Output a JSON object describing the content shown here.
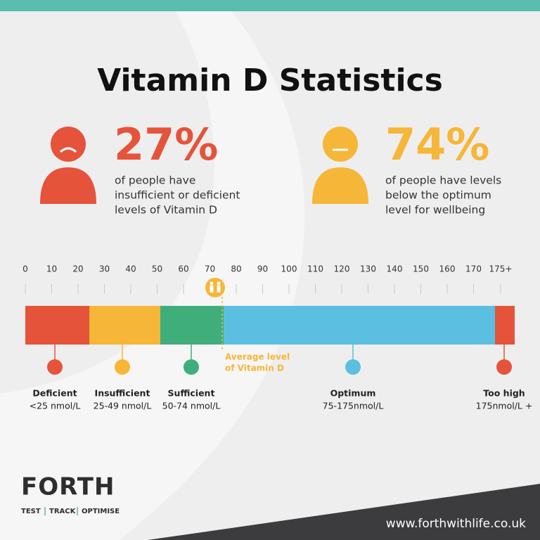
{
  "title": "Vitamin D Statistics",
  "stats": [
    {
      "value": "27%",
      "lines": [
        "of people have",
        "insufficient or deficient",
        "levels of Vitamin D"
      ]
    },
    {
      "value": "74%",
      "lines": [
        "of people have levels",
        "below the optimum",
        "level for wellbeing"
      ]
    }
  ],
  "scale": {
    "ticks": [
      "0",
      "10",
      "20",
      "30",
      "40",
      "50",
      "60",
      "70",
      "80",
      "90",
      "100",
      "110",
      "120",
      "130",
      "140",
      "150",
      "160",
      "170",
      "175+"
    ],
    "marker_label": [
      "Average level",
      "of Vitamin D"
    ]
  },
  "categories": [
    {
      "name": "Deficient",
      "range": "<25 nmol/L"
    },
    {
      "name": "Insufficient",
      "range": "25-49 nmol/L"
    },
    {
      "name": "Sufficient",
      "range": "50-74 nmol/L"
    },
    {
      "name": "Optimum",
      "range": "75-175nmol/L"
    },
    {
      "name": "Too high",
      "range": "175nmol/L +"
    }
  ],
  "footer": {
    "logo": "FORTH",
    "tagline": [
      "TEST",
      "TRACK",
      "OPTIMISE"
    ],
    "url": "www.forthwithlife.co.uk"
  }
}
